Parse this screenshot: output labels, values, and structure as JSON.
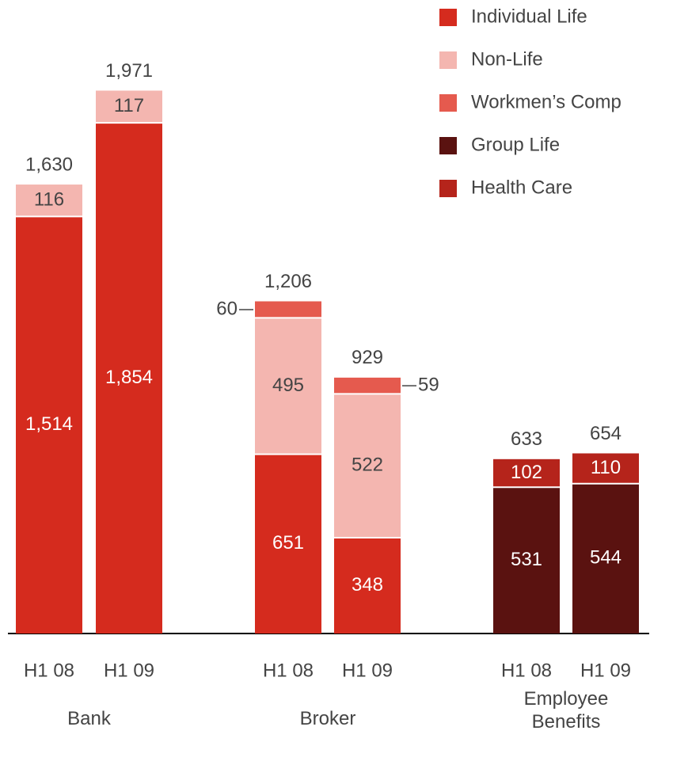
{
  "chart_data": {
    "type": "stacked_bar",
    "categories": [
      "H1 08",
      "H1 09",
      "H1 08",
      "H1 09",
      "H1 08",
      "H1 09"
    ],
    "groups": [
      "Bank",
      "Broker",
      "Employee Benefits"
    ],
    "ylim": [
      0,
      2300
    ],
    "totals": [
      1630,
      1971,
      1206,
      929,
      633,
      654
    ],
    "total_labels": [
      "1,630",
      "1,971",
      "1,206",
      "929",
      "633",
      "654"
    ],
    "legend": "top-right",
    "series": [
      {
        "name": "Individual Life",
        "color": "#d52b1e",
        "label_color": "#ffffff",
        "values": [
          1514,
          1854,
          651,
          348,
          null,
          null
        ],
        "value_labels": [
          "1,514",
          "1,854",
          "651",
          "348",
          null,
          null
        ]
      },
      {
        "name": "Non-Life",
        "color": "#f4b6b0",
        "label_color": "#444444",
        "values": [
          116,
          117,
          495,
          522,
          null,
          null
        ]
      },
      {
        "name": "Workmen’s Comp",
        "color": "#e55a4e",
        "label_color": "#444444",
        "values": [
          null,
          null,
          60,
          59,
          null,
          null
        ]
      },
      {
        "name": "Group Life",
        "color": "#5a1210",
        "label_color": "#ffffff",
        "values": [
          null,
          null,
          null,
          null,
          531,
          544
        ]
      },
      {
        "name": "Health Care",
        "color": "#b5241b",
        "label_color": "#ffffff",
        "values": [
          null,
          null,
          null,
          null,
          102,
          110
        ]
      }
    ]
  }
}
